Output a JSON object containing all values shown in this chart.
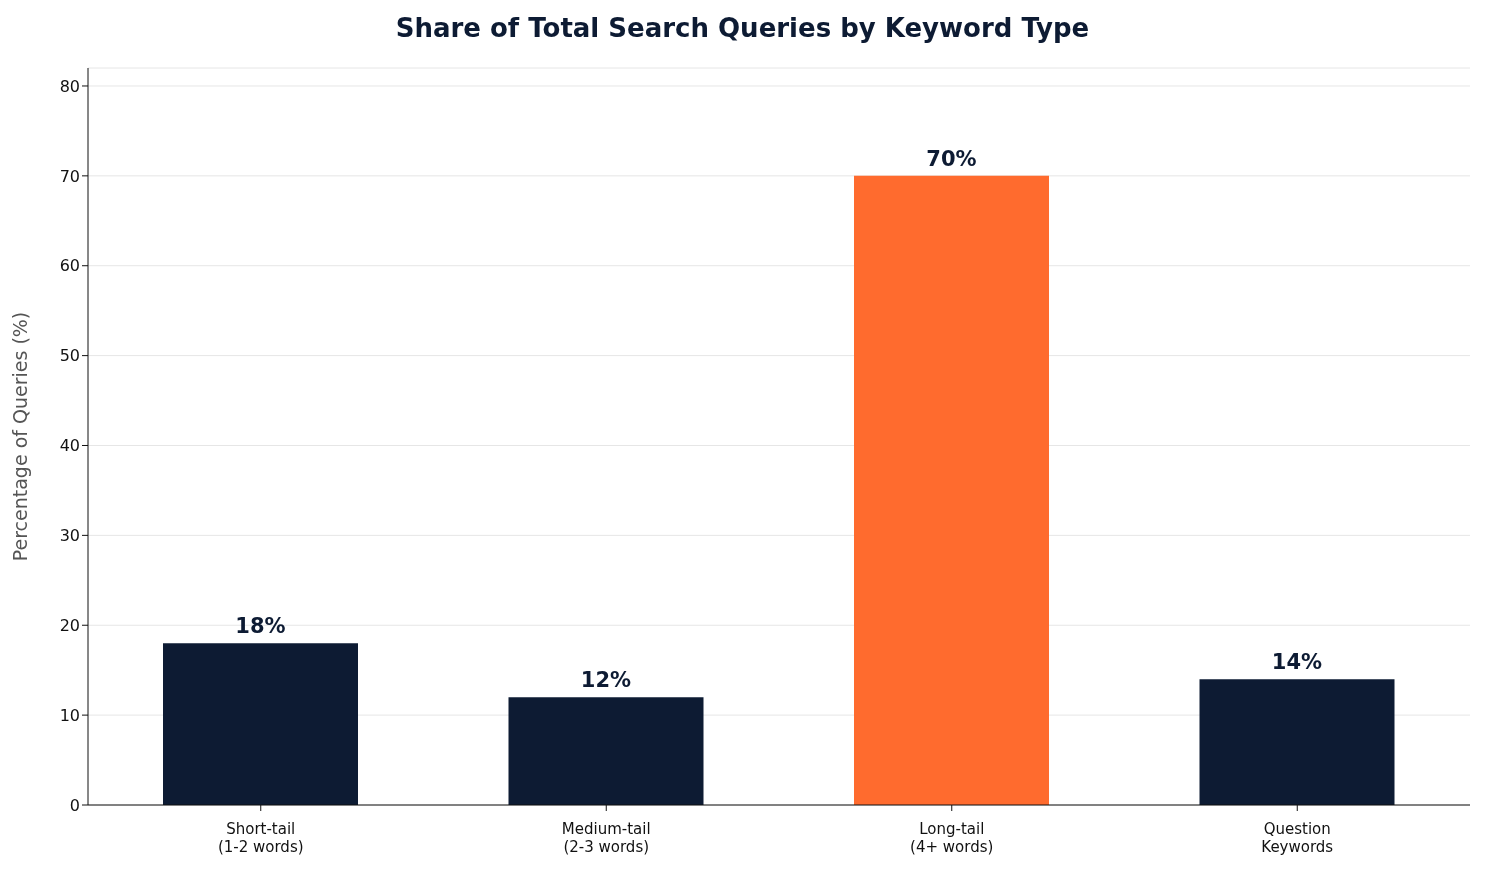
{
  "chart_data": {
    "type": "bar",
    "title": "Share of Total Search Queries by Keyword Type",
    "ylabel": "Percentage of Queries (%)",
    "categories": [
      "Short-tail\n(1-2 words)",
      "Medium-tail\n(2-3 words)",
      "Long-tail\n(4+ words)",
      "Question\nKeywords"
    ],
    "values": [
      18,
      12,
      70,
      14
    ],
    "colors": [
      "#0d1b33",
      "#0d1b33",
      "#ff6b2e",
      "#0d1b33"
    ],
    "value_labels": [
      "18%",
      "12%",
      "70%",
      "14%"
    ],
    "ylim": [
      0,
      82
    ],
    "yticks": [
      0,
      10,
      20,
      30,
      40,
      50,
      60,
      70,
      80
    ],
    "grid": "y"
  }
}
